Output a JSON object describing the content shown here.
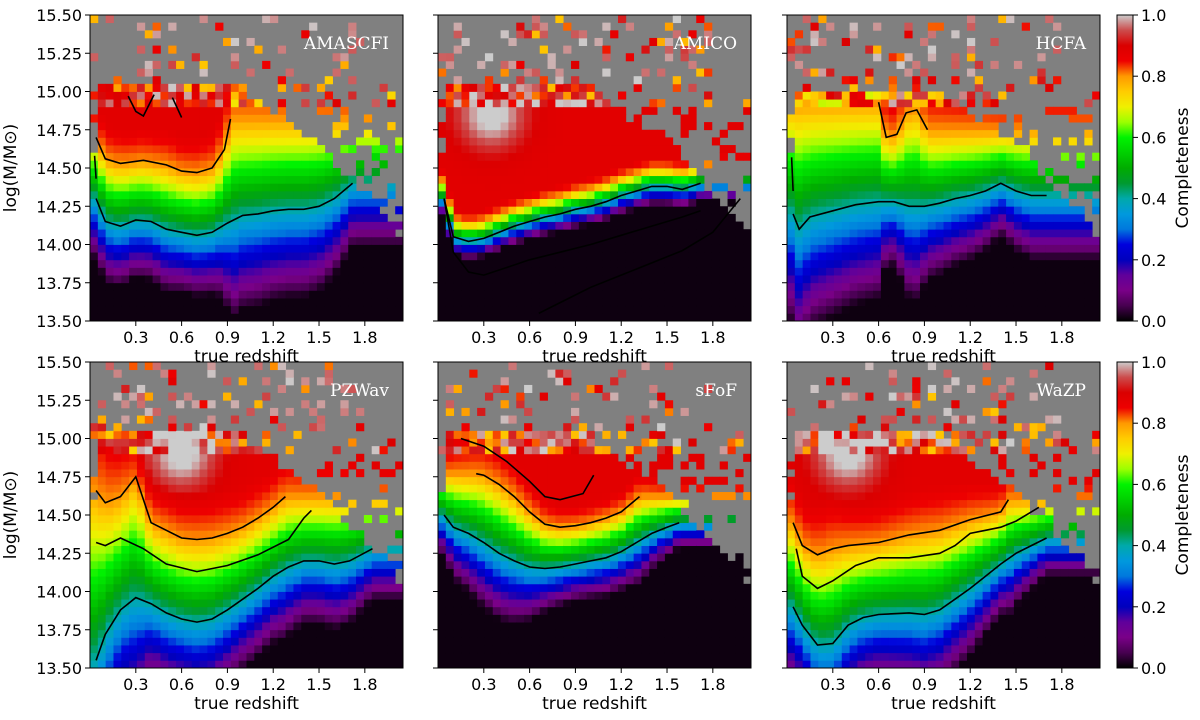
{
  "chart_data": {
    "type": "heatmap",
    "layout": "2x3 grid of panels with shared colorbars per row",
    "xlabel": "true redshift",
    "ylabel": "log(M/M⊙)",
    "colorbar_label": "Completeness",
    "colorbar_ticks": [
      "0.0",
      "0.2",
      "0.4",
      "0.6",
      "0.8",
      "1.0"
    ],
    "colorbar_range": [
      0,
      1
    ],
    "colormap": "nipy_spectral",
    "missing_bin_color": "#808080",
    "xlim": [
      0.0,
      2.05
    ],
    "ylim": [
      13.5,
      15.5
    ],
    "xticks": [
      0.3,
      0.6,
      0.9,
      1.2,
      1.5,
      1.8
    ],
    "xtick_labels": [
      "0.3",
      "0.6",
      "0.9",
      "1.2",
      "1.5",
      "1.8"
    ],
    "yticks": [
      13.5,
      13.75,
      14.0,
      14.25,
      14.5,
      14.75,
      15.0,
      15.25,
      15.5
    ],
    "ytick_labels": [
      "13.50",
      "13.75",
      "14.00",
      "14.25",
      "14.50",
      "14.75",
      "15.00",
      "15.25",
      "15.50"
    ],
    "contour_levels": [
      0.4,
      0.8
    ],
    "panels": [
      {
        "name": "AMASCFI",
        "label": "AMASCFI",
        "shape": "thr",
        "c20": [
          [
            0.04,
            14.3
          ],
          [
            0.1,
            14.15
          ],
          [
            0.2,
            14.12
          ],
          [
            0.3,
            14.16
          ],
          [
            0.4,
            14.15
          ],
          [
            0.5,
            14.1
          ],
          [
            0.6,
            14.08
          ],
          [
            0.7,
            14.06
          ],
          [
            0.8,
            14.08
          ],
          [
            0.9,
            14.14
          ],
          [
            1.0,
            14.19
          ],
          [
            1.1,
            14.2
          ],
          [
            1.2,
            14.22
          ],
          [
            1.3,
            14.23
          ],
          [
            1.4,
            14.23
          ],
          [
            1.5,
            14.25
          ],
          [
            1.6,
            14.3
          ],
          [
            1.72,
            14.4
          ]
        ],
        "c80": [
          [
            0.04,
            14.7
          ],
          [
            0.1,
            14.56
          ],
          [
            0.2,
            14.53
          ],
          [
            0.35,
            14.55
          ],
          [
            0.5,
            14.52
          ],
          [
            0.6,
            14.48
          ],
          [
            0.7,
            14.47
          ],
          [
            0.8,
            14.5
          ],
          [
            0.88,
            14.62
          ],
          [
            0.92,
            14.82
          ]
        ],
        "ctr_extra": [
          [
            [
              0.03,
              14.58
            ],
            [
              0.04,
              14.43
            ]
          ],
          [
            [
              0.25,
              14.97
            ],
            [
              0.3,
              14.87
            ],
            [
              0.35,
              14.84
            ],
            [
              0.42,
              14.98
            ]
          ],
          [
            [
              0.54,
              14.96
            ],
            [
              0.6,
              14.83
            ]
          ]
        ],
        "ridge": null,
        "dark": 0.0,
        "high_cut": 15.05
      },
      {
        "name": "AMICO",
        "label": "AMICO",
        "shape": "diag",
        "c20": [
          [
            0.04,
            14.3
          ],
          [
            0.1,
            14.05
          ],
          [
            0.2,
            14.02
          ],
          [
            0.3,
            14.04
          ],
          [
            0.4,
            14.08
          ],
          [
            0.5,
            14.12
          ],
          [
            0.6,
            14.15
          ],
          [
            0.7,
            14.18
          ],
          [
            0.8,
            14.2
          ],
          [
            0.9,
            14.23
          ],
          [
            1.0,
            14.25
          ],
          [
            1.1,
            14.28
          ],
          [
            1.2,
            14.32
          ],
          [
            1.3,
            14.35
          ],
          [
            1.4,
            14.38
          ],
          [
            1.5,
            14.38
          ],
          [
            1.6,
            14.36
          ],
          [
            1.72,
            14.4
          ]
        ],
        "c80": [
          [
            0.04,
            14.3
          ],
          [
            0.1,
            13.95
          ],
          [
            0.2,
            13.82
          ],
          [
            0.3,
            13.8
          ],
          [
            0.45,
            13.85
          ],
          [
            0.6,
            13.9
          ],
          [
            0.8,
            13.95
          ],
          [
            1.0,
            14.0
          ],
          [
            1.2,
            14.06
          ],
          [
            1.4,
            14.12
          ],
          [
            1.6,
            14.18
          ],
          [
            1.72,
            14.22
          ]
        ],
        "ctr_extra": [
          [
            [
              0.66,
              13.55
            ],
            [
              0.8,
              13.62
            ],
            [
              1.0,
              13.72
            ],
            [
              1.2,
              13.8
            ],
            [
              1.4,
              13.88
            ],
            [
              1.6,
              13.96
            ],
            [
              1.8,
              14.08
            ],
            [
              1.98,
              14.3
            ]
          ]
        ],
        "ridge": {
          "x": 0.35,
          "y": 14.85
        },
        "dark": 0.0,
        "high_cut": 15.05
      },
      {
        "name": "HCFA",
        "label": "HCFA",
        "shape": "thr",
        "c20": [
          [
            0.04,
            14.2
          ],
          [
            0.08,
            14.1
          ],
          [
            0.15,
            14.18
          ],
          [
            0.3,
            14.22
          ],
          [
            0.45,
            14.26
          ],
          [
            0.6,
            14.28
          ],
          [
            0.7,
            14.28
          ],
          [
            0.8,
            14.25
          ],
          [
            0.9,
            14.25
          ],
          [
            1.0,
            14.27
          ],
          [
            1.1,
            14.3
          ],
          [
            1.2,
            14.32
          ],
          [
            1.3,
            14.35
          ],
          [
            1.4,
            14.4
          ],
          [
            1.5,
            14.35
          ],
          [
            1.6,
            14.32
          ],
          [
            1.7,
            14.32
          ]
        ],
        "c80": [
          [
            0.6,
            14.93
          ],
          [
            0.65,
            14.7
          ],
          [
            0.72,
            14.72
          ],
          [
            0.78,
            14.86
          ],
          [
            0.85,
            14.88
          ],
          [
            0.92,
            14.75
          ]
        ],
        "ctr_extra": [
          [
            [
              0.03,
              14.57
            ],
            [
              0.04,
              14.35
            ]
          ]
        ],
        "ridge": null,
        "dark": 0.0,
        "high_cut": 15.0
      },
      {
        "name": "PZWav",
        "label": "PZWav",
        "shape": "wave",
        "c20": [
          [
            0.04,
            13.55
          ],
          [
            0.1,
            13.72
          ],
          [
            0.2,
            13.88
          ],
          [
            0.3,
            13.96
          ],
          [
            0.4,
            13.92
          ],
          [
            0.5,
            13.86
          ],
          [
            0.6,
            13.82
          ],
          [
            0.7,
            13.8
          ],
          [
            0.8,
            13.82
          ],
          [
            0.9,
            13.88
          ],
          [
            1.0,
            13.95
          ],
          [
            1.1,
            14.02
          ],
          [
            1.2,
            14.1
          ],
          [
            1.3,
            14.16
          ],
          [
            1.4,
            14.2
          ],
          [
            1.5,
            14.2
          ],
          [
            1.6,
            14.18
          ],
          [
            1.7,
            14.2
          ],
          [
            1.85,
            14.28
          ]
        ],
        "c80": [
          [
            0.04,
            14.66
          ],
          [
            0.1,
            14.58
          ],
          [
            0.2,
            14.62
          ],
          [
            0.3,
            14.75
          ],
          [
            0.4,
            14.45
          ],
          [
            0.5,
            14.4
          ],
          [
            0.6,
            14.35
          ],
          [
            0.7,
            14.34
          ],
          [
            0.8,
            14.35
          ],
          [
            0.9,
            14.38
          ],
          [
            1.0,
            14.42
          ],
          [
            1.1,
            14.48
          ],
          [
            1.2,
            14.55
          ],
          [
            1.28,
            14.62
          ]
        ],
        "ctr_extra": [
          [
            [
              0.04,
              14.32
            ],
            [
              0.1,
              14.3
            ],
            [
              0.2,
              14.35
            ],
            [
              0.35,
              14.28
            ],
            [
              0.5,
              14.18
            ],
            [
              0.7,
              14.13
            ],
            [
              0.9,
              14.17
            ],
            [
              1.1,
              14.24
            ],
            [
              1.3,
              14.34
            ],
            [
              1.4,
              14.48
            ],
            [
              1.45,
              14.53
            ]
          ]
        ],
        "ridge": {
          "x": 0.6,
          "y": 14.9
        },
        "dark": 0.0,
        "high_cut": 15.05
      },
      {
        "name": "sFoF",
        "label": "sFoF",
        "shape": "trough",
        "c20": [
          [
            0.04,
            14.5
          ],
          [
            0.1,
            14.42
          ],
          [
            0.2,
            14.38
          ],
          [
            0.3,
            14.32
          ],
          [
            0.4,
            14.25
          ],
          [
            0.5,
            14.2
          ],
          [
            0.6,
            14.16
          ],
          [
            0.7,
            14.15
          ],
          [
            0.8,
            14.16
          ],
          [
            0.9,
            14.18
          ],
          [
            1.0,
            14.2
          ],
          [
            1.1,
            14.22
          ],
          [
            1.2,
            14.26
          ],
          [
            1.3,
            14.32
          ],
          [
            1.4,
            14.38
          ],
          [
            1.5,
            14.42
          ],
          [
            1.58,
            14.45
          ]
        ],
        "c80": [
          [
            0.25,
            14.77
          ],
          [
            0.3,
            14.76
          ],
          [
            0.4,
            14.7
          ],
          [
            0.5,
            14.62
          ],
          [
            0.6,
            14.52
          ],
          [
            0.7,
            14.44
          ],
          [
            0.8,
            14.42
          ],
          [
            0.9,
            14.43
          ],
          [
            1.0,
            14.45
          ],
          [
            1.1,
            14.48
          ],
          [
            1.2,
            14.52
          ],
          [
            1.32,
            14.62
          ]
        ],
        "ctr_extra": [
          [
            [
              0.15,
              15.0
            ],
            [
              0.3,
              14.95
            ],
            [
              0.45,
              14.85
            ],
            [
              0.6,
              14.72
            ],
            [
              0.7,
              14.62
            ],
            [
              0.8,
              14.6
            ],
            [
              0.95,
              14.64
            ],
            [
              1.02,
              14.76
            ]
          ]
        ],
        "ridge": null,
        "dark": 0.45,
        "high_cut": 15.05
      },
      {
        "name": "WaZP",
        "label": "WaZP",
        "shape": "wavy",
        "c20": [
          [
            0.04,
            13.9
          ],
          [
            0.1,
            13.78
          ],
          [
            0.2,
            13.65
          ],
          [
            0.3,
            13.66
          ],
          [
            0.4,
            13.78
          ],
          [
            0.5,
            13.83
          ],
          [
            0.6,
            13.85
          ],
          [
            0.8,
            13.86
          ],
          [
            0.9,
            13.85
          ],
          [
            1.0,
            13.88
          ],
          [
            1.1,
            13.95
          ],
          [
            1.2,
            14.02
          ],
          [
            1.3,
            14.1
          ],
          [
            1.4,
            14.18
          ],
          [
            1.5,
            14.25
          ],
          [
            1.6,
            14.3
          ],
          [
            1.7,
            14.35
          ]
        ],
        "c80": [
          [
            0.04,
            14.45
          ],
          [
            0.1,
            14.3
          ],
          [
            0.2,
            14.24
          ],
          [
            0.3,
            14.28
          ],
          [
            0.4,
            14.3
          ],
          [
            0.6,
            14.32
          ],
          [
            0.8,
            14.37
          ],
          [
            1.0,
            14.4
          ],
          [
            1.2,
            14.47
          ],
          [
            1.4,
            14.52
          ],
          [
            1.45,
            14.6
          ]
        ],
        "ctr_extra": [
          [
            [
              0.06,
              14.28
            ],
            [
              0.1,
              14.1
            ],
            [
              0.2,
              14.02
            ],
            [
              0.3,
              14.07
            ],
            [
              0.45,
              14.17
            ],
            [
              0.6,
              14.22
            ],
            [
              0.8,
              14.22
            ],
            [
              1.0,
              14.25
            ],
            [
              1.1,
              14.3
            ],
            [
              1.2,
              14.38
            ],
            [
              1.3,
              14.4
            ],
            [
              1.4,
              14.42
            ],
            [
              1.5,
              14.46
            ],
            [
              1.6,
              14.52
            ],
            [
              1.65,
              14.55
            ]
          ]
        ],
        "ridge": {
          "x": 0.4,
          "y": 14.9
        },
        "dark": 0.0,
        "high_cut": 15.05
      }
    ]
  }
}
